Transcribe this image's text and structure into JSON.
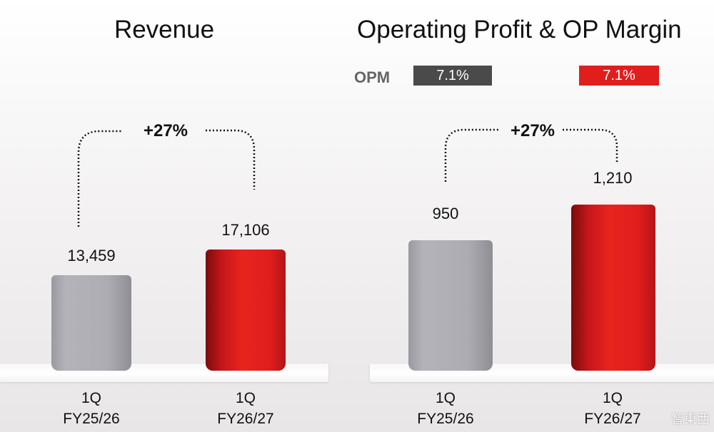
{
  "chart_data": [
    {
      "type": "bar",
      "title": "Revenue",
      "categories": [
        "1Q FY25/26",
        "1Q FY26/27"
      ],
      "category_lines": [
        [
          "1Q",
          "FY25/26"
        ],
        [
          "1Q",
          "FY26/27"
        ]
      ],
      "values": [
        13459,
        17106
      ],
      "value_labels": [
        "13,459",
        "17,106"
      ],
      "growth_label": "+27%",
      "colors": [
        "#adacb2",
        "#e01e1c"
      ]
    },
    {
      "type": "bar",
      "title": "Operating Profit & OP Margin",
      "categories": [
        "1Q FY25/26",
        "1Q FY26/27"
      ],
      "category_lines": [
        [
          "1Q",
          "FY25/26"
        ],
        [
          "1Q",
          "FY26/27"
        ]
      ],
      "values": [
        950,
        1210
      ],
      "value_labels": [
        "950",
        "1,210"
      ],
      "growth_label": "+27%",
      "opm_label": "OPM",
      "opm_values": [
        "7.1%",
        "7.1%"
      ],
      "colors": [
        "#adacb2",
        "#e01e1c"
      ]
    }
  ],
  "watermark": "智東西"
}
